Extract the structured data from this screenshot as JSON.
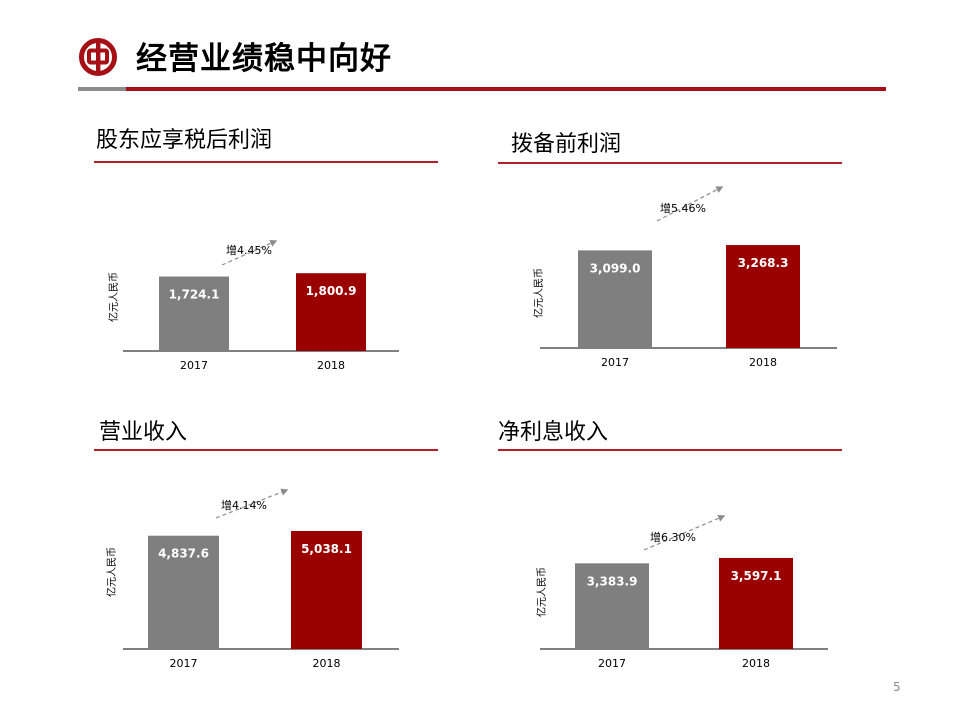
{
  "title": "经营业绩稳中向好",
  "page_number": "5",
  "colors": {
    "brand_red": "#a50f15",
    "bar_2017": "#7f7f7f",
    "bar_2018": "#9b0000",
    "arrow": "#8c8c8c"
  },
  "logo": {
    "icon": "bank-of-china-logo"
  },
  "chart_data": [
    {
      "type": "bar",
      "title": "股东应享税后利润",
      "ylabel": "亿元人民币",
      "categories": [
        "2017",
        "2018"
      ],
      "values": [
        1724.1,
        1800.9
      ],
      "value_labels": [
        "1,724.1",
        "1,800.9"
      ],
      "annotation": "增4.45%",
      "ylim": [
        0,
        2000
      ],
      "grid": false,
      "legend": "none"
    },
    {
      "type": "bar",
      "title": "拨备前利润",
      "ylabel": "亿元人民币",
      "categories": [
        "2017",
        "2018"
      ],
      "values": [
        3099.0,
        3268.3
      ],
      "value_labels": [
        "3,099.0",
        "3,268.3"
      ],
      "annotation": "增5.46%",
      "ylim": [
        0,
        3600
      ],
      "grid": false,
      "legend": "none"
    },
    {
      "type": "bar",
      "title": "营业收入",
      "ylabel": "亿元人民币",
      "categories": [
        "2017",
        "2018"
      ],
      "values": [
        4837.6,
        5038.1
      ],
      "value_labels": [
        "4,837.6",
        "5,038.1"
      ],
      "annotation": "增4.14%",
      "ylim": [
        0,
        5500
      ],
      "grid": false,
      "legend": "none"
    },
    {
      "type": "bar",
      "title": "净利息收入",
      "ylabel": "亿元人民币",
      "categories": [
        "2017",
        "2018"
      ],
      "values": [
        3383.9,
        3597.1
      ],
      "value_labels": [
        "3,383.9",
        "3,597.1"
      ],
      "annotation": "增6.30%",
      "ylim": [
        0,
        4000
      ],
      "grid": false,
      "legend": "none"
    }
  ]
}
